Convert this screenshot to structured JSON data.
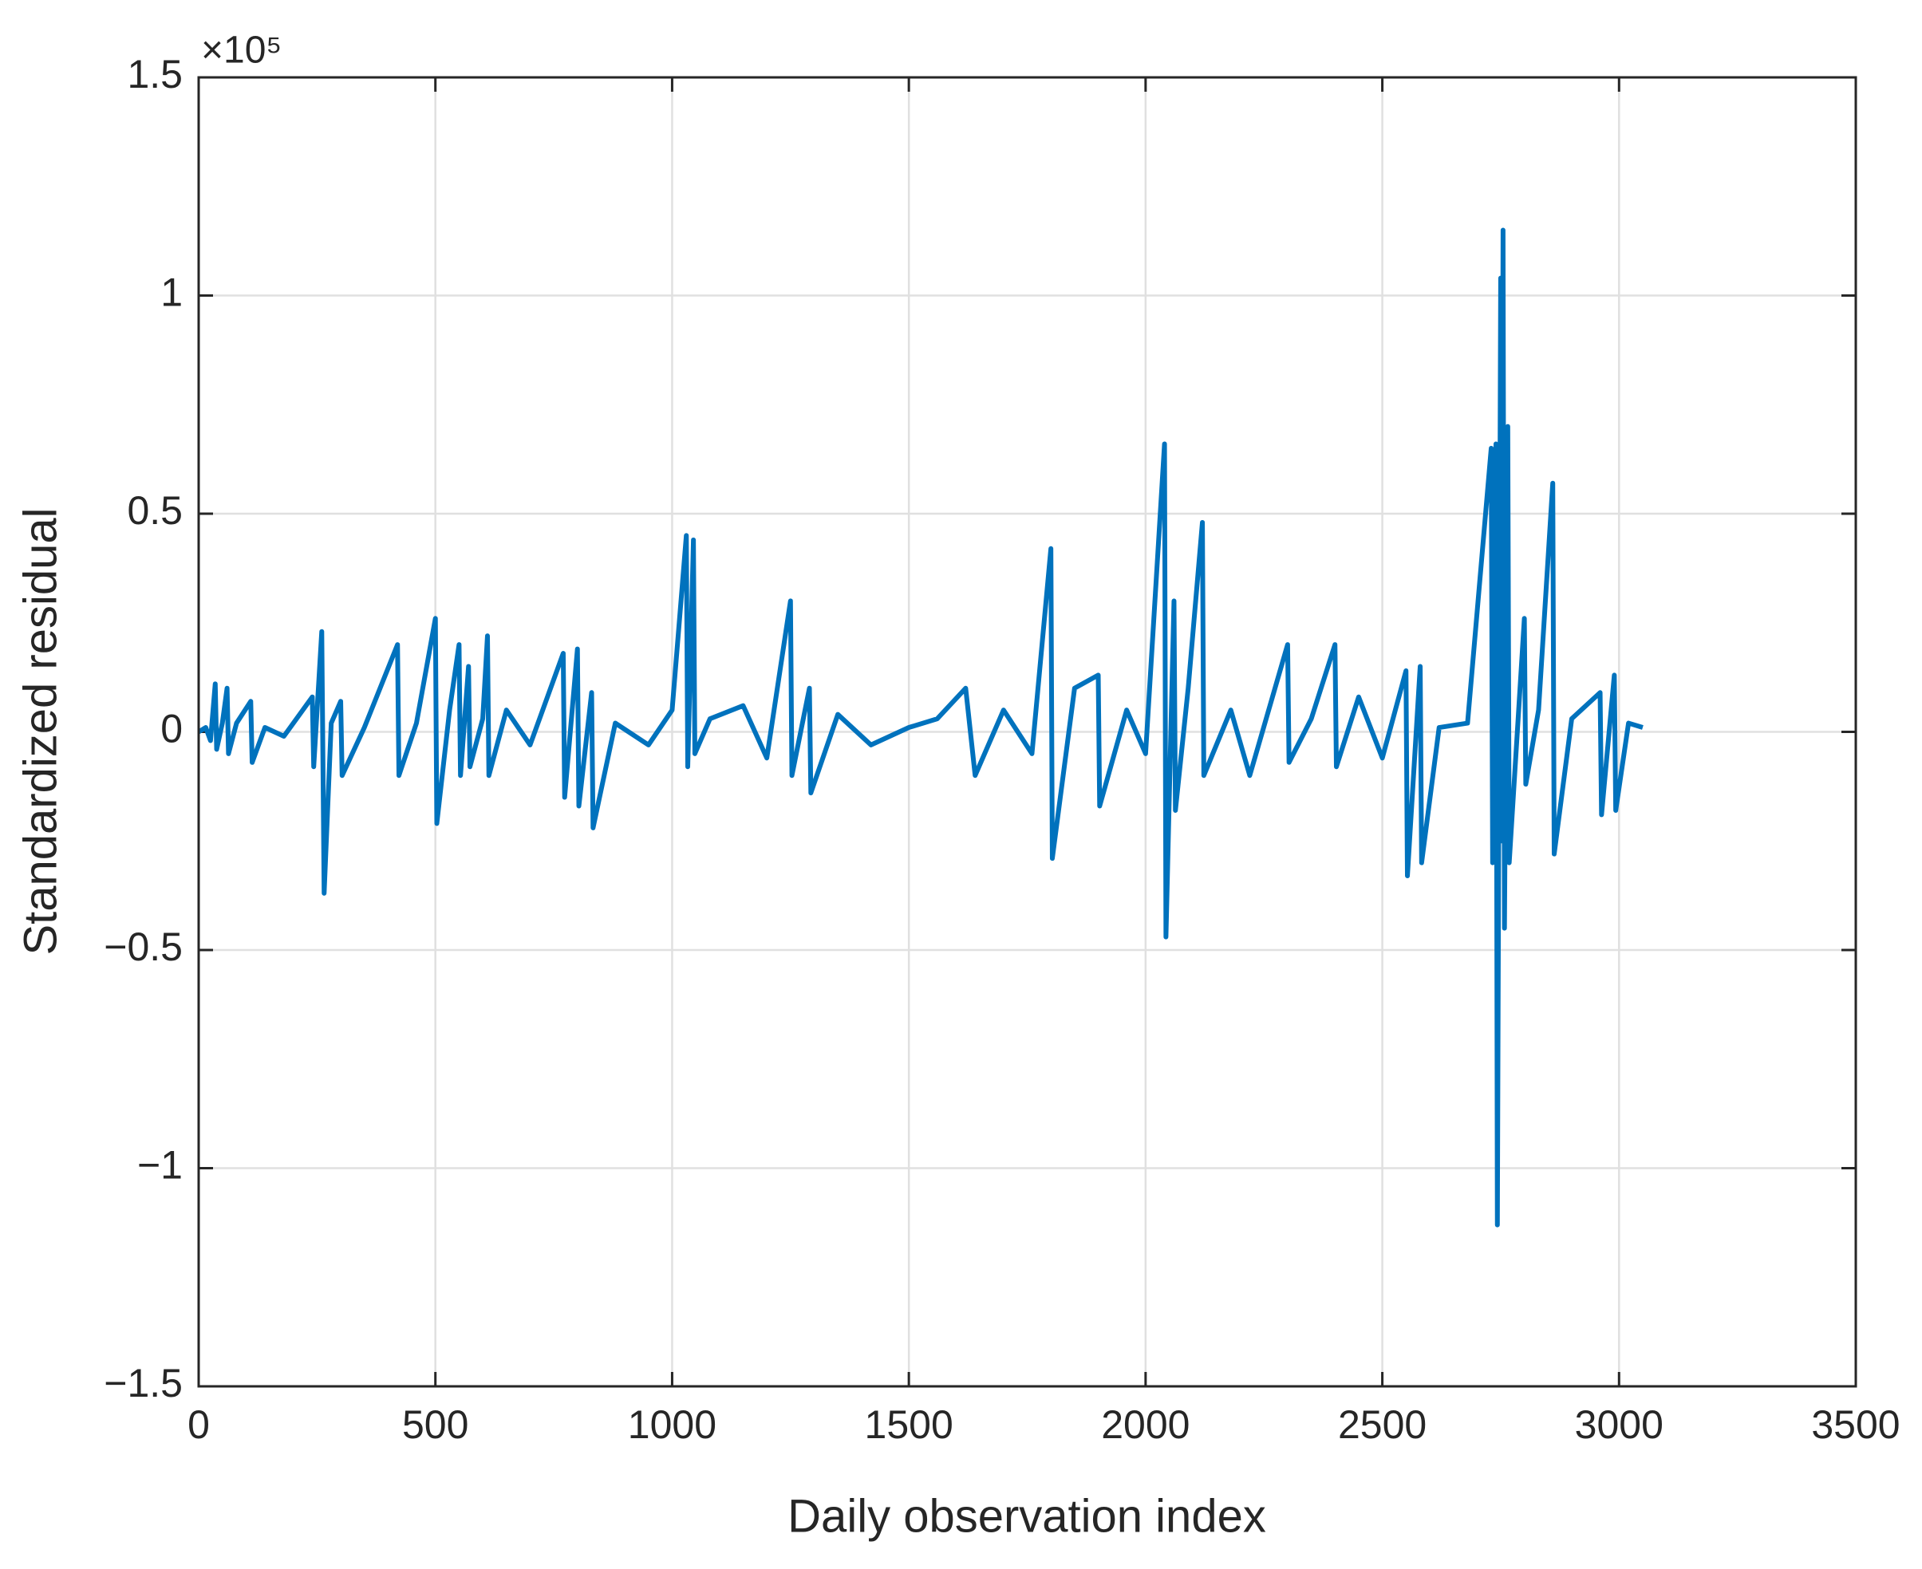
{
  "chart_data": {
    "type": "line",
    "xlabel": "Daily observation index",
    "ylabel": "Standardized residual",
    "y_multiplier": "×10⁵",
    "x": [
      0,
      15,
      25,
      35,
      38,
      50,
      60,
      63,
      80,
      110,
      113,
      140,
      180,
      240,
      243,
      260,
      265,
      280,
      300,
      303,
      350,
      420,
      423,
      460,
      500,
      503,
      530,
      550,
      553,
      570,
      573,
      600,
      610,
      613,
      650,
      700,
      770,
      773,
      800,
      803,
      830,
      833,
      880,
      950,
      1000,
      1030,
      1033,
      1045,
      1048,
      1080,
      1150,
      1200,
      1250,
      1253,
      1290,
      1293,
      1350,
      1420,
      1500,
      1560,
      1620,
      1640,
      1700,
      1760,
      1800,
      1803,
      1850,
      1900,
      1903,
      1960,
      2000,
      2040,
      2043,
      2060,
      2063,
      2090,
      2120,
      2123,
      2180,
      2220,
      2300,
      2303,
      2350,
      2400,
      2403,
      2450,
      2500,
      2550,
      2553,
      2580,
      2583,
      2620,
      2680,
      2730,
      2733,
      2740,
      2743,
      2750,
      2752,
      2755,
      2758,
      2765,
      2768,
      2800,
      2803,
      2830,
      2860,
      2863,
      2900,
      2960,
      2963,
      2990,
      2993,
      3020,
      3050
    ],
    "series": [
      {
        "color": "#0072bd",
        "values": [
          0,
          0.01,
          -0.02,
          0.11,
          -0.04,
          0.02,
          0.1,
          -0.05,
          0.02,
          0.07,
          -0.07,
          0.01,
          -0.01,
          0.08,
          -0.08,
          0.23,
          -0.37,
          0.02,
          0.07,
          -0.1,
          0.01,
          0.2,
          -0.1,
          0.02,
          0.26,
          -0.21,
          0.05,
          0.2,
          -0.1,
          0.15,
          -0.08,
          0.03,
          0.22,
          -0.1,
          0.05,
          -0.03,
          0.18,
          -0.15,
          0.19,
          -0.17,
          0.09,
          -0.22,
          0.02,
          -0.03,
          0.05,
          0.45,
          -0.08,
          0.44,
          -0.05,
          0.03,
          0.06,
          -0.06,
          0.3,
          -0.1,
          0.1,
          -0.14,
          0.04,
          -0.03,
          0.01,
          0.03,
          0.1,
          -0.1,
          0.05,
          -0.05,
          0.42,
          -0.29,
          0.1,
          0.13,
          -0.17,
          0.05,
          -0.05,
          0.66,
          -0.47,
          0.3,
          -0.18,
          0.1,
          0.48,
          -0.1,
          0.05,
          -0.1,
          0.2,
          -0.07,
          0.03,
          0.2,
          -0.08,
          0.08,
          -0.06,
          0.14,
          -0.33,
          0.15,
          -0.3,
          0.01,
          0.02,
          0.65,
          -0.3,
          0.66,
          -1.13,
          1.04,
          -0.25,
          1.15,
          -0.45,
          0.7,
          -0.3,
          0.26,
          -0.12,
          0.05,
          0.57,
          -0.28,
          0.03,
          0.09,
          -0.19,
          0.13,
          -0.18,
          0.02,
          0.01
        ]
      }
    ],
    "xlim": [
      0,
      3500
    ],
    "xticks": [
      0,
      500,
      1000,
      1500,
      2000,
      2500,
      3000,
      3500
    ],
    "ylim": [
      -1.5,
      1.5
    ],
    "yticks": [
      {
        "value": -1.5,
        "label": "−1.5"
      },
      {
        "value": -1,
        "label": "−1"
      },
      {
        "value": -0.5,
        "label": "−0.5"
      },
      0,
      0.5,
      1,
      1.5
    ],
    "grid": true
  }
}
